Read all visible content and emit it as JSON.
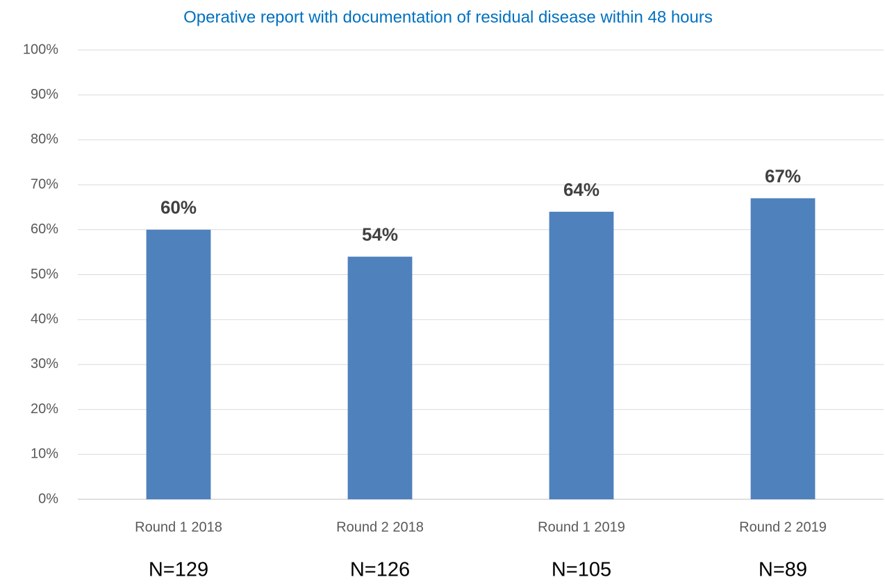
{
  "chart_data": {
    "type": "bar",
    "title": "Operative report with documentation of residual disease within 48 hours",
    "categories": [
      "Round 1 2018",
      "Round 2 2018",
      "Round 1 2019",
      "Round 2 2019"
    ],
    "annotations": [
      "N=129",
      "N=126",
      "N=105",
      "N=89"
    ],
    "values": [
      60,
      54,
      64,
      67
    ],
    "value_labels": [
      "60%",
      "54%",
      "64%",
      "67%"
    ],
    "color": "#4f81bd",
    "ylim": [
      0,
      100
    ],
    "yticks": [
      {
        "value": 0,
        "label": "0%"
      },
      {
        "value": 10,
        "label": "10%"
      },
      {
        "value": 20,
        "label": "20%"
      },
      {
        "value": 30,
        "label": "30%"
      },
      {
        "value": 40,
        "label": "40%"
      },
      {
        "value": 50,
        "label": "50%"
      },
      {
        "value": 60,
        "label": "60%"
      },
      {
        "value": 70,
        "label": "70%"
      },
      {
        "value": 80,
        "label": "80%"
      },
      {
        "value": 90,
        "label": "90%"
      },
      {
        "value": 100,
        "label": "100%"
      }
    ],
    "grid": true
  }
}
